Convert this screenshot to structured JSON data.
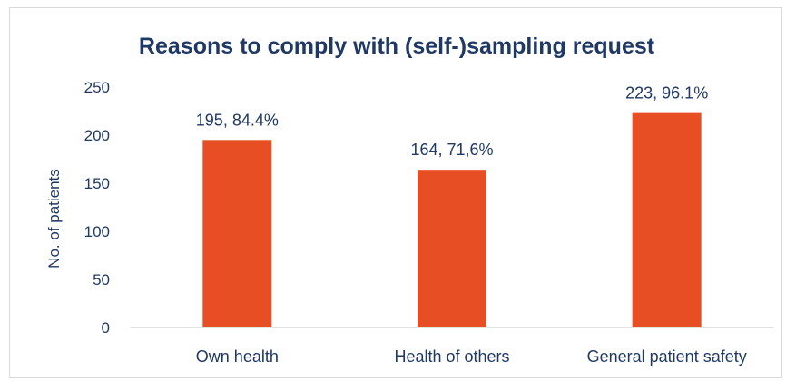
{
  "chart_data": {
    "type": "bar",
    "title": "Reasons to comply with (self-)sampling request",
    "xlabel": "",
    "ylabel": "No. of patients",
    "categories": [
      "Own health",
      "Health of others",
      "General patient safety"
    ],
    "values": [
      195,
      164,
      223
    ],
    "data_labels": [
      "195, 84.4%",
      "164, 71,6%",
      "223, 96.1%"
    ],
    "ylim": [
      0,
      250
    ],
    "yticks": [
      0,
      50,
      100,
      150,
      200,
      250
    ],
    "grid": false,
    "legend": "none",
    "bar_color": "#e84e24",
    "text_color": "#1f3864"
  }
}
